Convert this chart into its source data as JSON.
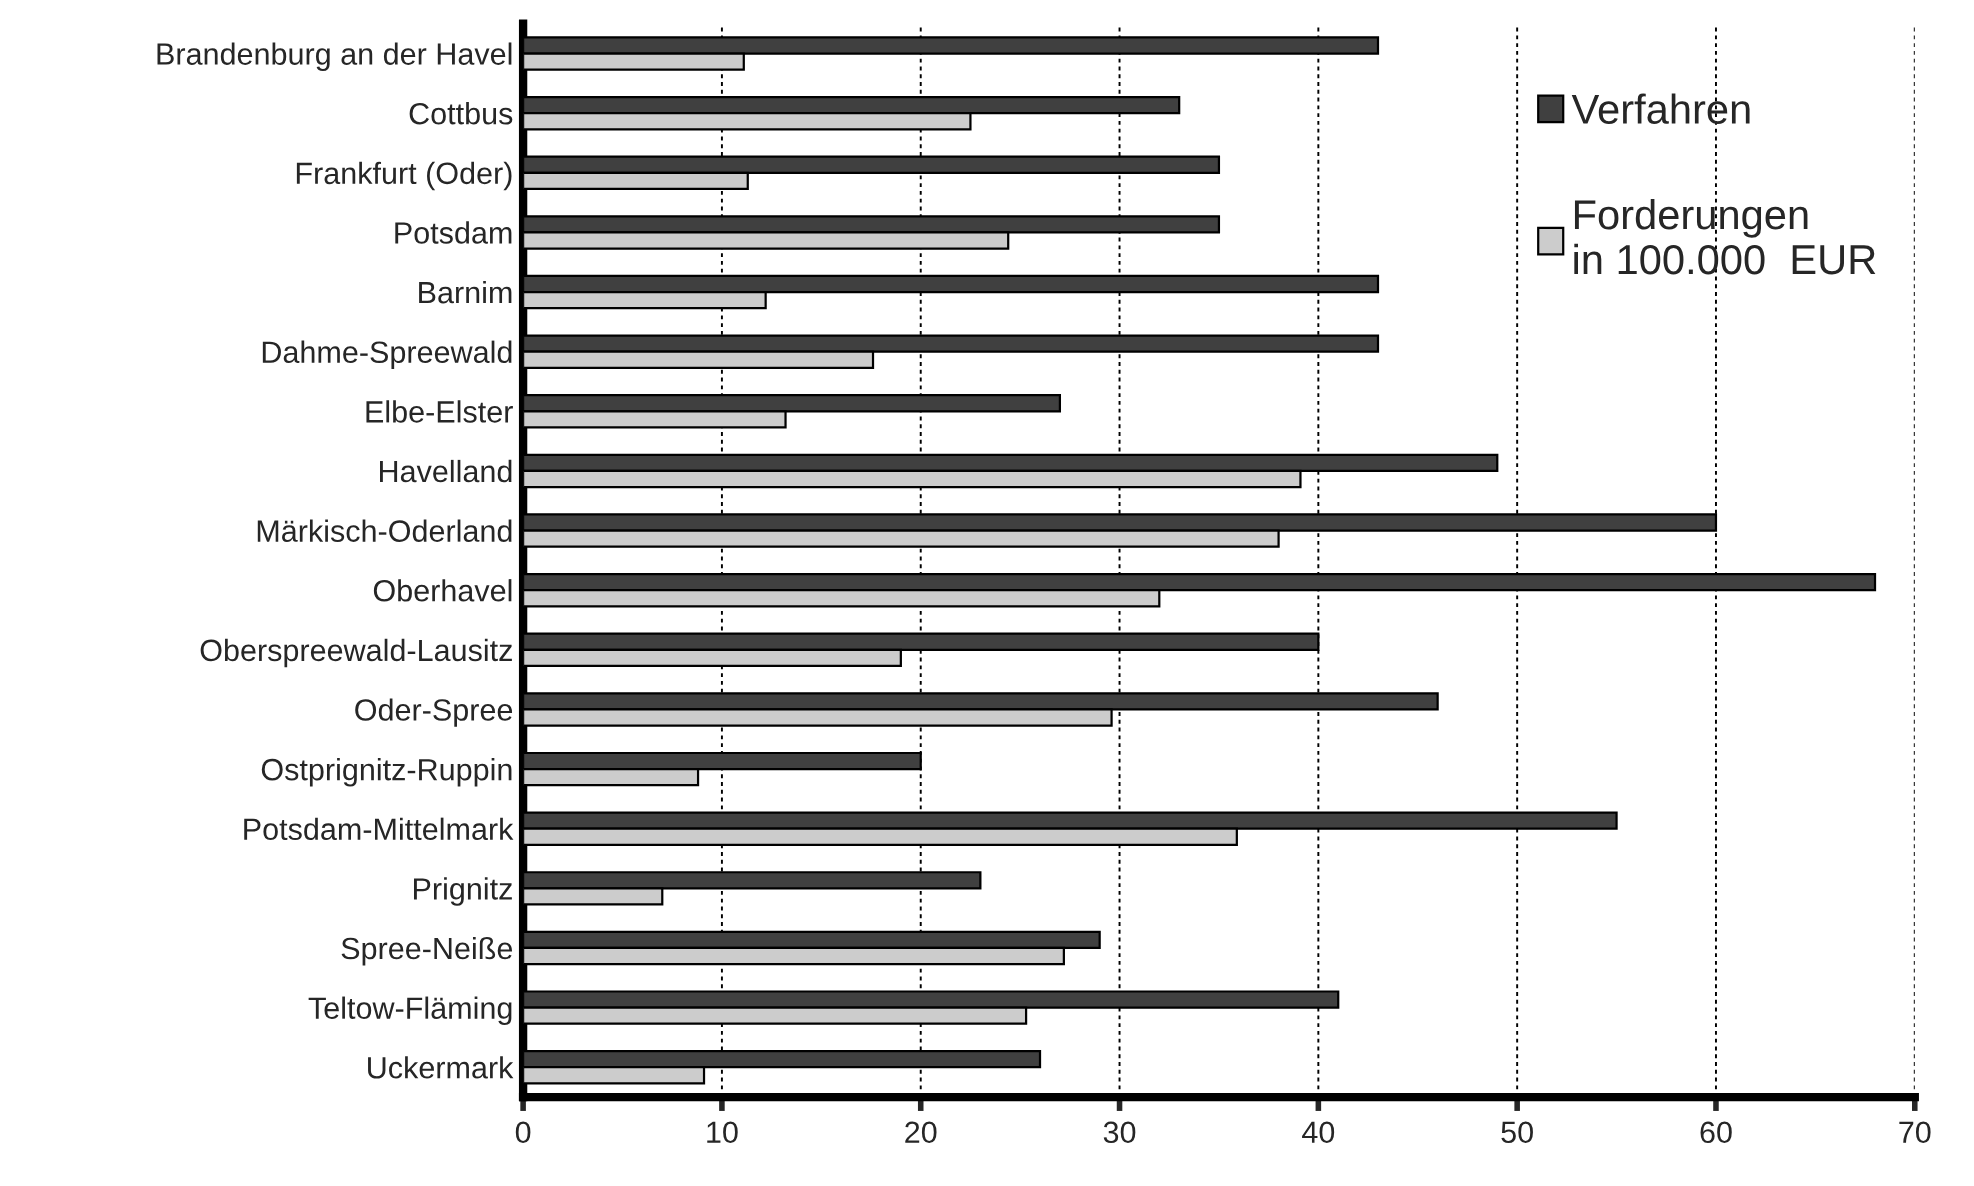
{
  "chart_data": {
    "type": "bar",
    "orientation": "horizontal",
    "categories": [
      "Brandenburg an der Havel",
      "Cottbus",
      "Frankfurt (Oder)",
      "Potsdam",
      "Barnim",
      "Dahme-Spreewald",
      "Elbe-Elster",
      "Havelland",
      "Märkisch-Oderland",
      "Oberhavel",
      "Oberspreewald-Lausitz",
      "Oder-Spree",
      "Ostprignitz-Ruppin",
      "Potsdam-Mittelmark",
      "Prignitz",
      "Spree-Neiße",
      "Teltow-Fläming",
      "Uckermark"
    ],
    "series": [
      {
        "name": "Verfahren",
        "color": "#404040",
        "values": [
          43,
          33,
          35,
          35,
          43,
          43,
          27,
          49,
          60,
          68,
          40,
          46,
          20,
          55,
          23,
          29,
          41,
          26
        ]
      },
      {
        "name": "Forderungen\nin 100.000  EUR",
        "color": "#cccccc",
        "values": [
          11.1,
          22.5,
          11.3,
          24.4,
          12.2,
          17.6,
          13.2,
          39.1,
          38.0,
          32.0,
          19.0,
          29.6,
          8.8,
          35.9,
          7.0,
          27.2,
          25.3,
          9.1
        ]
      }
    ],
    "xlim": [
      0,
      70
    ],
    "xticks": [
      0,
      10,
      20,
      30,
      40,
      50,
      60,
      70
    ],
    "grid": "x",
    "legend": "top right"
  }
}
